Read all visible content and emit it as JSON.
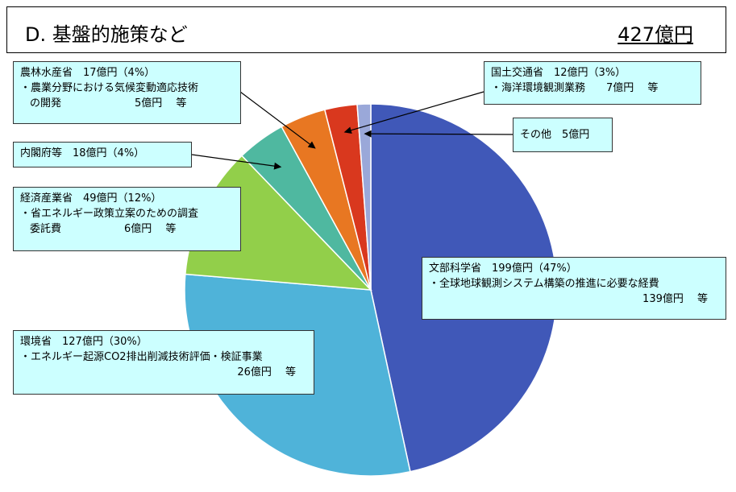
{
  "header": {
    "title": "D. 基盤的施策など",
    "total": "427億円"
  },
  "chart_data": {
    "type": "pie",
    "title": "D. 基盤的施策など",
    "total": "427億円",
    "slices": [
      {
        "name": "文部科学省",
        "value": 199,
        "percent": 47,
        "color": "#4058b8"
      },
      {
        "name": "環境省",
        "value": 127,
        "percent": 30,
        "color": "#4fb3d9"
      },
      {
        "name": "経済産業省",
        "value": 49,
        "percent": 12,
        "color": "#92cf4a"
      },
      {
        "name": "内閣府等",
        "value": 18,
        "percent": 4,
        "color": "#4fb8a0"
      },
      {
        "name": "農林水産省",
        "value": 17,
        "percent": 4,
        "color": "#e87722"
      },
      {
        "name": "国土交通省",
        "value": 12,
        "percent": 3,
        "color": "#d9381e"
      },
      {
        "name": "その他",
        "value": 5,
        "percent": 1,
        "color": "#9aa8d9"
      }
    ]
  },
  "labels": {
    "monka": {
      "line1": "文部科学省　199億円（47%）",
      "line2": "・全球地球観測システム構築の推進に必要な経費",
      "line3": "139億円　 等"
    },
    "kankyo": {
      "line1": "環境省　127億円（30%）",
      "line2": "・エネルギー起源CO2排出削減技術評価・検証事業",
      "line3": "26億円　 等"
    },
    "keisan": {
      "line1": "経済産業省　49億円（12%）",
      "line2": "・省エネルギー政策立案のための調査",
      "line3": "委託費　　　　　　6億円　 等"
    },
    "naikaku": {
      "line1": "内閣府等　18億円（4%）"
    },
    "norin": {
      "line1": "農林水産省　17億円（4%）",
      "line2": "・農業分野における気候変動適応技術",
      "line3": "の開発　　　　　　　5億円　 等"
    },
    "kokudo": {
      "line1": "国土交通省　12億円（3%）",
      "line2": "・海洋環境観測業務　　7億円　 等"
    },
    "sonota": {
      "line1": "その他　5億円"
    }
  }
}
